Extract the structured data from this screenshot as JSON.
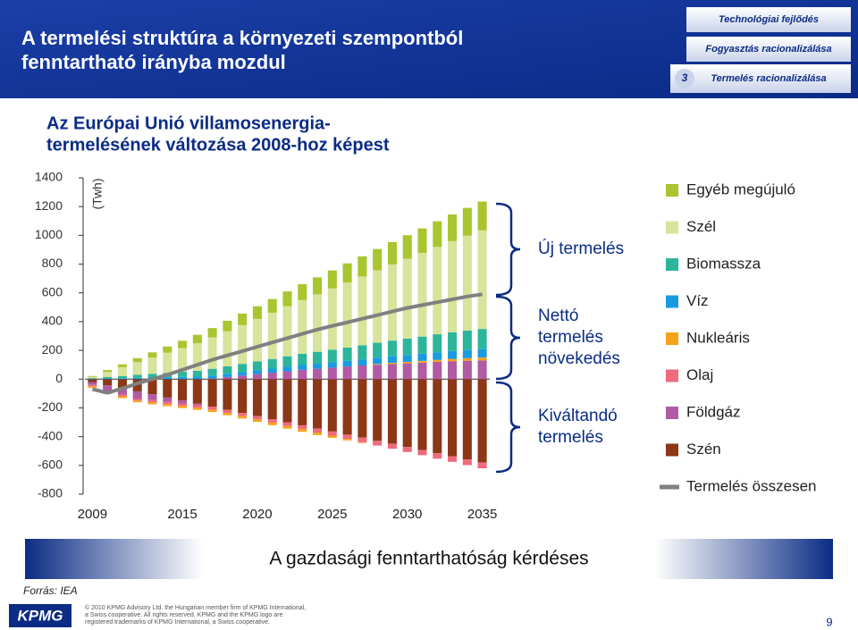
{
  "header": {
    "title": [
      "A termelési struktúra a környezeti szempontból",
      "fenntartható irányba mozdul"
    ],
    "tabs": [
      "Technológiai fejlődés",
      "Fogyasztás racionalizálása",
      "Termelés racionalizálása"
    ],
    "active_tab_number": "3"
  },
  "chart_data": {
    "type": "bar",
    "stacked": true,
    "title": [
      "Az Európai Unió villamosenergia-",
      "termelésének változása 2008-hoz képest"
    ],
    "y_label": "(Twh)",
    "x": [
      2009,
      2010,
      2011,
      2012,
      2013,
      2014,
      2015,
      2016,
      2017,
      2018,
      2019,
      2020,
      2021,
      2022,
      2023,
      2024,
      2025,
      2026,
      2027,
      2028,
      2029,
      2030,
      2031,
      2032,
      2033,
      2034,
      2035
    ],
    "xlim": [
      2008.5,
      2035.5
    ],
    "xticks": [
      2009,
      2015,
      2020,
      2025,
      2030,
      2035
    ],
    "ylim": [
      -800,
      1400
    ],
    "yticks": [
      -800,
      -600,
      -400,
      -200,
      0,
      200,
      400,
      600,
      800,
      1000,
      1200,
      1400
    ],
    "series": [
      {
        "name": "Egyéb megújuló",
        "color": "#a9c52f",
        "values": [
          5,
          13,
          20,
          28,
          35,
          43,
          50,
          58,
          65,
          73,
          80,
          88,
          95,
          103,
          110,
          118,
          125,
          133,
          140,
          148,
          155,
          163,
          170,
          178,
          185,
          193,
          200
        ]
      },
      {
        "name": "Szél",
        "color": "#d6e49c",
        "values": [
          10,
          36,
          62,
          88,
          114,
          140,
          166,
          192,
          218,
          244,
          270,
          296,
          322,
          348,
          374,
          400,
          426,
          452,
          478,
          504,
          530,
          556,
          582,
          608,
          634,
          660,
          686
        ]
      },
      {
        "name": "Biomassza",
        "color": "#2db59b",
        "values": [
          5,
          10,
          15,
          21,
          26,
          31,
          36,
          41,
          47,
          52,
          57,
          62,
          67,
          73,
          78,
          83,
          88,
          93,
          99,
          104,
          109,
          114,
          119,
          125,
          130,
          135,
          140
        ]
      },
      {
        "name": "Víz",
        "color": "#1a9ae0",
        "values": [
          2,
          4,
          6,
          9,
          11,
          13,
          15,
          17,
          20,
          22,
          24,
          26,
          28,
          31,
          33,
          35,
          37,
          39,
          42,
          44,
          46,
          48,
          50,
          53,
          55,
          57,
          59
        ]
      },
      {
        "name": "Nukleáris",
        "color": "#f7a21b",
        "values": [
          -10,
          -10,
          -12,
          -12,
          -14,
          -14,
          -15,
          -15,
          -16,
          -16,
          -17,
          -17,
          -18,
          -18,
          -18,
          -18,
          -15,
          -10,
          -5,
          5,
          8,
          10,
          12,
          14,
          16,
          18,
          20
        ]
      },
      {
        "name": "Olaj",
        "color": "#ee6b7c",
        "values": [
          -10,
          -11,
          -12,
          -14,
          -15,
          -16,
          -17,
          -18,
          -20,
          -21,
          -22,
          -23,
          -24,
          -26,
          -27,
          -28,
          -29,
          -30,
          -32,
          -33,
          -34,
          -35,
          -36,
          -38,
          -39,
          -40,
          -41
        ]
      },
      {
        "name": "Földgáz",
        "color": "#b05ba3",
        "values": [
          -20,
          -40,
          -45,
          -50,
          -40,
          -30,
          -20,
          -10,
          5,
          15,
          25,
          35,
          45,
          55,
          65,
          72,
          80,
          88,
          95,
          100,
          105,
          110,
          115,
          120,
          125,
          128,
          130
        ]
      },
      {
        "name": "Szén",
        "color": "#8c3716",
        "values": [
          -20,
          -42,
          -63,
          -85,
          -106,
          -128,
          -149,
          -171,
          -192,
          -214,
          -235,
          -257,
          -278,
          -300,
          -321,
          -343,
          -364,
          -386,
          -407,
          -429,
          -450,
          -472,
          -493,
          -515,
          -536,
          -558,
          -579
        ]
      },
      {
        "name": "Termelés összesen",
        "color": "#808080",
        "type": "line",
        "values": [
          -70,
          -95,
          -65,
          -30,
          0,
          30,
          65,
          100,
          135,
          165,
          195,
          225,
          255,
          285,
          315,
          345,
          370,
          395,
          420,
          445,
          470,
          495,
          515,
          535,
          555,
          575,
          590
        ]
      }
    ]
  },
  "brackets": [
    [
      "Új termelés"
    ],
    [
      "Nettó",
      "termelés",
      "növekedés"
    ],
    [
      "Kiváltandó",
      "termelés"
    ]
  ],
  "banner": "A gazdasági fenntarthatóság kérdéses",
  "source": "Forrás: IEA",
  "footer": {
    "logo": "KPMG",
    "legal": [
      "© 2010 KPMG Advisory Ltd. the Hungarian member firm of KPMG International,",
      "a Swiss cooperative. All rights reserved. KPMG and the KPMG logo are",
      "registered trademarks of KPMG International, a Swiss cooperative."
    ],
    "page_number": "9"
  }
}
